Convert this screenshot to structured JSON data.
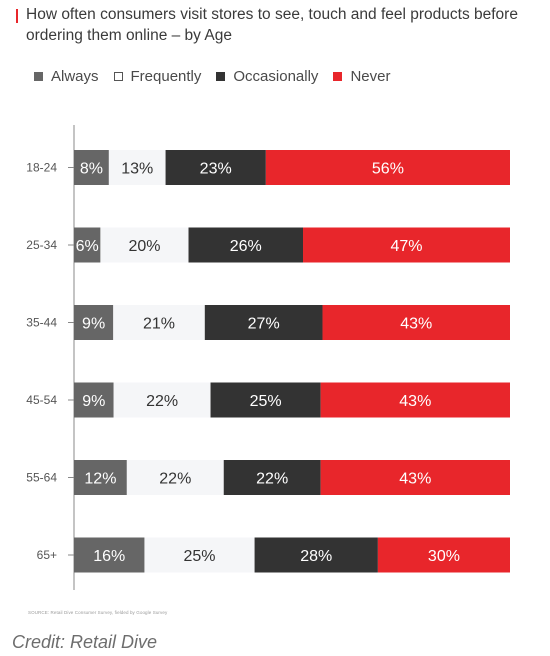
{
  "title": "How often consumers visit stores to see, touch and feel products before ordering them online – by Age",
  "source": "SOURCE: Retail Dive Consumer Survey, fielded by Google Survey",
  "credit": "Credit: Retail Dive",
  "colors": {
    "title_bar": "#e8262b",
    "always": "#666666",
    "frequently": "#f5f6f8",
    "occasionally": "#333333",
    "never": "#e8262b"
  },
  "chart_data": {
    "type": "bar",
    "orientation": "horizontal",
    "stacked": true,
    "categories": [
      "18-24",
      "25-34",
      "35-44",
      "45-54",
      "55-64",
      "65+"
    ],
    "series": [
      {
        "name": "Always",
        "values": [
          8,
          6,
          9,
          9,
          12,
          16
        ],
        "labels": [
          "8%",
          "6%",
          "9%",
          "9%",
          "12%",
          "16%"
        ]
      },
      {
        "name": "Frequently",
        "values": [
          13,
          20,
          21,
          22,
          22,
          25
        ],
        "labels": [
          "13%",
          "20%",
          "21%",
          "22%",
          "22%",
          "25%"
        ]
      },
      {
        "name": "Occasionally",
        "values": [
          23,
          26,
          27,
          25,
          22,
          28
        ],
        "labels": [
          "23%",
          "26%",
          "27%",
          "25%",
          "22%",
          "28%"
        ]
      },
      {
        "name": "Never",
        "values": [
          56,
          47,
          43,
          43,
          43,
          30
        ],
        "labels": [
          "56%",
          "47%",
          "43%",
          "43%",
          "43%",
          "30%"
        ]
      }
    ],
    "legend_position": "top-left",
    "grid": false
  }
}
